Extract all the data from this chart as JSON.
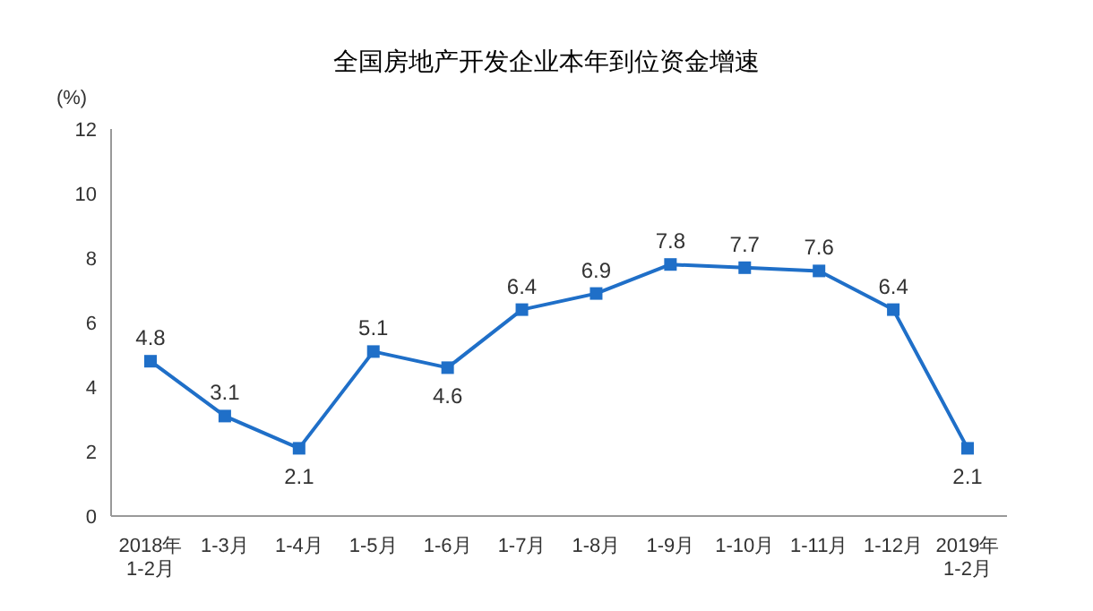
{
  "chart_data": {
    "type": "line",
    "title": "全国房地产开发企业本年到位资金增速",
    "ylabel": "(%)",
    "categories": [
      "2018年\n1-2月",
      "1-3月",
      "1-4月",
      "1-5月",
      "1-6月",
      "1-7月",
      "1-8月",
      "1-9月",
      "1-10月",
      "1-11月",
      "1-12月",
      "2019年\n1-2月"
    ],
    "series": [
      {
        "color": "#1f6fc8",
        "values": [
          4.8,
          3.1,
          2.1,
          5.1,
          4.6,
          6.4,
          6.9,
          7.8,
          7.7,
          7.6,
          6.4,
          2.1
        ]
      }
    ],
    "ylim": [
      0,
      12
    ],
    "yticks": [
      0,
      2,
      4,
      6,
      8,
      10,
      12
    ],
    "marker": "square",
    "line_style": "solid",
    "data_labels": true
  }
}
